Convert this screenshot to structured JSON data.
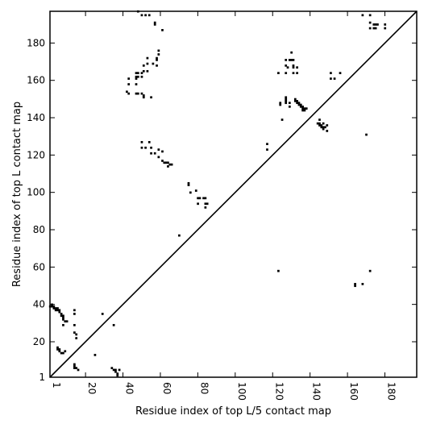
{
  "chart_data": {
    "type": "heatmap",
    "xlabel": "Residue index of top L/5 contact map",
    "ylabel": "Residue index of top L contact map",
    "xlim": [
      1,
      197
    ],
    "ylim": [
      1,
      197
    ],
    "xticks": [
      1,
      20,
      40,
      60,
      80,
      100,
      120,
      140,
      160,
      180
    ],
    "xtick_labels": [
      "1",
      "20",
      "40",
      "60",
      "80",
      "100",
      "120",
      "140",
      "160",
      "180"
    ],
    "yticks": [
      1,
      20,
      40,
      60,
      80,
      100,
      120,
      140,
      160,
      180
    ],
    "ytick_labels": [
      "1",
      "20",
      "40",
      "60",
      "80",
      "100",
      "120",
      "140",
      "160",
      "180"
    ],
    "diagonal": true,
    "grid": false,
    "marker_color": "#000000",
    "lower_triangle_top_L5": [
      [
        1,
        39
      ],
      [
        2,
        39
      ],
      [
        2,
        40
      ],
      [
        3,
        38
      ],
      [
        3,
        39
      ],
      [
        4,
        38
      ],
      [
        4,
        37
      ],
      [
        5,
        37
      ],
      [
        5,
        38
      ],
      [
        6,
        36
      ],
      [
        6,
        37
      ],
      [
        7,
        35
      ],
      [
        7,
        34
      ],
      [
        8,
        34
      ],
      [
        8,
        33
      ],
      [
        8,
        32
      ],
      [
        9,
        31
      ],
      [
        10,
        31
      ],
      [
        5,
        17
      ],
      [
        5,
        16
      ],
      [
        6,
        16
      ],
      [
        6,
        15
      ],
      [
        7,
        14
      ],
      [
        8,
        14
      ],
      [
        9,
        15
      ],
      [
        8,
        29
      ],
      [
        14,
        37
      ],
      [
        14,
        35
      ],
      [
        14,
        29
      ],
      [
        14,
        25
      ],
      [
        15,
        24
      ],
      [
        15,
        22
      ],
      [
        14,
        6
      ],
      [
        14,
        7
      ],
      [
        15,
        6
      ],
      [
        16,
        5
      ],
      [
        14,
        8
      ],
      [
        25,
        13
      ],
      [
        29,
        35
      ],
      [
        34,
        6
      ],
      [
        35,
        5
      ],
      [
        36,
        5
      ],
      [
        36,
        4
      ],
      [
        37,
        3
      ],
      [
        37,
        2
      ],
      [
        38,
        5
      ],
      [
        35,
        29
      ],
      [
        70,
        77
      ],
      [
        123,
        58
      ],
      [
        164,
        50
      ],
      [
        164,
        51
      ],
      [
        168,
        51
      ],
      [
        172,
        58
      ]
    ],
    "upper_triangle_top_L": [
      [
        42,
        154
      ],
      [
        43,
        153
      ],
      [
        43,
        158
      ],
      [
        43,
        161
      ],
      [
        47,
        153
      ],
      [
        47,
        158
      ],
      [
        48,
        153
      ],
      [
        47,
        161
      ],
      [
        47,
        162
      ],
      [
        47,
        164
      ],
      [
        48,
        162
      ],
      [
        48,
        164
      ],
      [
        50,
        162
      ],
      [
        50,
        164
      ],
      [
        51,
        165
      ],
      [
        50,
        153
      ],
      [
        51,
        152
      ],
      [
        51,
        151
      ],
      [
        53,
        165
      ],
      [
        51,
        168
      ],
      [
        53,
        172
      ],
      [
        53,
        169
      ],
      [
        56,
        169
      ],
      [
        58,
        168
      ],
      [
        58,
        171
      ],
      [
        58,
        172
      ],
      [
        59,
        174
      ],
      [
        59,
        176
      ],
      [
        55,
        151
      ],
      [
        50,
        124
      ],
      [
        50,
        127
      ],
      [
        52,
        124
      ],
      [
        54,
        127
      ],
      [
        55,
        121
      ],
      [
        55,
        124
      ],
      [
        57,
        121
      ],
      [
        59,
        119
      ],
      [
        59,
        123
      ],
      [
        61,
        122
      ],
      [
        61,
        117
      ],
      [
        62,
        116
      ],
      [
        63,
        116
      ],
      [
        64,
        116
      ],
      [
        64,
        114
      ],
      [
        65,
        115
      ],
      [
        66,
        115
      ],
      [
        48,
        197
      ],
      [
        50,
        195
      ],
      [
        52,
        195
      ],
      [
        54,
        195
      ],
      [
        57,
        191
      ],
      [
        57,
        190
      ],
      [
        61,
        187
      ],
      [
        75,
        104
      ],
      [
        75,
        105
      ],
      [
        76,
        100
      ],
      [
        79,
        101
      ],
      [
        80,
        97
      ],
      [
        81,
        97
      ],
      [
        83,
        97
      ],
      [
        84,
        97
      ],
      [
        80,
        94
      ],
      [
        84,
        94
      ],
      [
        85,
        94
      ],
      [
        84,
        92
      ],
      [
        117,
        126
      ],
      [
        117,
        123
      ],
      [
        123,
        164
      ],
      [
        125,
        139
      ],
      [
        124,
        148
      ],
      [
        124,
        147
      ],
      [
        127,
        151
      ],
      [
        127,
        150
      ],
      [
        127,
        149
      ],
      [
        127,
        148
      ],
      [
        127,
        164
      ],
      [
        127,
        168
      ],
      [
        127,
        171
      ],
      [
        128,
        167
      ],
      [
        129,
        171
      ],
      [
        130,
        171
      ],
      [
        130,
        175
      ],
      [
        131,
        164
      ],
      [
        131,
        167
      ],
      [
        131,
        168
      ],
      [
        131,
        171
      ],
      [
        133,
        164
      ],
      [
        133,
        167
      ],
      [
        129,
        148
      ],
      [
        129,
        146
      ],
      [
        132,
        150
      ],
      [
        132,
        149
      ],
      [
        133,
        149
      ],
      [
        133,
        148
      ],
      [
        134,
        148
      ],
      [
        134,
        147
      ],
      [
        135,
        147
      ],
      [
        135,
        146
      ],
      [
        136,
        146
      ],
      [
        136,
        145
      ],
      [
        137,
        145
      ],
      [
        137,
        144
      ],
      [
        138,
        145
      ],
      [
        136,
        144
      ],
      [
        144,
        137
      ],
      [
        145,
        137
      ],
      [
        145,
        136
      ],
      [
        146,
        136
      ],
      [
        146,
        135
      ],
      [
        147,
        135
      ],
      [
        147,
        134
      ],
      [
        148,
        135
      ],
      [
        145,
        139
      ],
      [
        147,
        137
      ],
      [
        149,
        136
      ],
      [
        149,
        133
      ],
      [
        151,
        161
      ],
      [
        151,
        164
      ],
      [
        153,
        161
      ],
      [
        156,
        164
      ],
      [
        168,
        195
      ],
      [
        172,
        195
      ],
      [
        172,
        191
      ],
      [
        172,
        188
      ],
      [
        174,
        188
      ],
      [
        174,
        190
      ],
      [
        175,
        190
      ],
      [
        176,
        190
      ],
      [
        175,
        188
      ],
      [
        180,
        188
      ],
      [
        180,
        190
      ],
      [
        170,
        131
      ]
    ]
  }
}
